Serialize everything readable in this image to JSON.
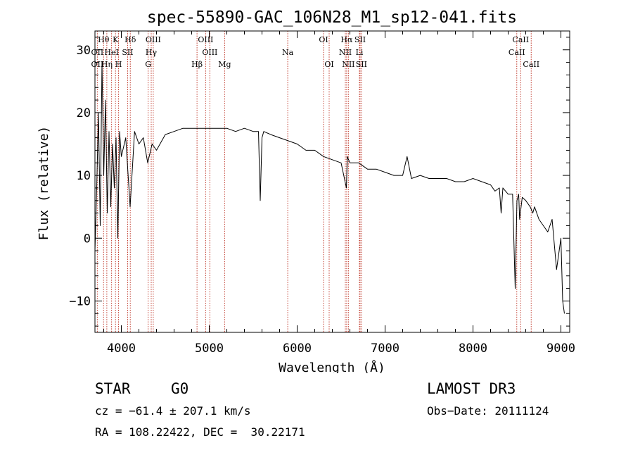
{
  "chart_data": {
    "type": "line",
    "title": "spec-55890-GAC_106N28_M1_sp12-041.fits",
    "xlabel": "Wavelength (Å)",
    "ylabel": "Flux (relative)",
    "xlim": [
      3700,
      9100
    ],
    "ylim": [
      -15,
      33
    ],
    "xticks": [
      4000,
      5000,
      6000,
      7000,
      8000,
      9000
    ],
    "yticks": [
      -10,
      0,
      10,
      20,
      30
    ],
    "series": [
      {
        "name": "flux",
        "x": [
          3700,
          3720,
          3740,
          3760,
          3780,
          3800,
          3820,
          3840,
          3860,
          3880,
          3900,
          3920,
          3940,
          3960,
          3980,
          4000,
          4050,
          4100,
          4150,
          4200,
          4250,
          4300,
          4350,
          4400,
          4500,
          4600,
          4700,
          4800,
          4900,
          5000,
          5100,
          5200,
          5300,
          5400,
          5500,
          5560,
          5580,
          5600,
          5620,
          5700,
          5800,
          5900,
          6000,
          6100,
          6200,
          6300,
          6400,
          6500,
          6560,
          6570,
          6600,
          6700,
          6800,
          6900,
          7000,
          7100,
          7200,
          7250,
          7300,
          7400,
          7500,
          7600,
          7700,
          7800,
          7900,
          8000,
          8100,
          8200,
          8250,
          8300,
          8320,
          8340,
          8400,
          8450,
          8480,
          8500,
          8520,
          8530,
          8560,
          8600,
          8650,
          8680,
          8700,
          8750,
          8800,
          8850,
          8900,
          8950,
          9000,
          9020,
          9040
        ],
        "y": [
          -2,
          8,
          20,
          2,
          28,
          10,
          22,
          4,
          17,
          5,
          15,
          8,
          16,
          0,
          17,
          13,
          16,
          5,
          17,
          15,
          16,
          12,
          15,
          14,
          16.5,
          17,
          17.5,
          17.5,
          17.5,
          17.5,
          17.5,
          17.5,
          17,
          17.5,
          17,
          17,
          6,
          16,
          17,
          16.5,
          16,
          15.5,
          15,
          14,
          14,
          13,
          12.5,
          12,
          8,
          13,
          12,
          12,
          11,
          11,
          10.5,
          10,
          10,
          13,
          9.5,
          10,
          9.5,
          9.5,
          9.5,
          9,
          9,
          9.5,
          9,
          8.5,
          7.5,
          8,
          4,
          8,
          7,
          7,
          -8,
          6,
          7,
          3,
          6.5,
          6,
          5,
          4,
          5,
          3,
          2,
          1,
          3,
          -5,
          0,
          -10,
          -12
        ]
      }
    ],
    "lines": [
      {
        "label": "Hθ",
        "wave": 3798,
        "row": 0
      },
      {
        "label": "K",
        "wave": 3934,
        "row": 0
      },
      {
        "label": "Hδ",
        "wave": 4102,
        "row": 0
      },
      {
        "label": "OIII",
        "wave": 4363,
        "row": 0
      },
      {
        "label": "OIII",
        "wave": 4959,
        "row": 0
      },
      {
        "label": "OI",
        "wave": 6300,
        "row": 0
      },
      {
        "label": "Hα",
        "wave": 6563,
        "row": 0
      },
      {
        "label": "SII",
        "wave": 6716,
        "row": 0
      },
      {
        "label": "CaII",
        "wave": 8542,
        "row": 0
      },
      {
        "label": "OII",
        "wave": 3727,
        "row": 1
      },
      {
        "label": "HeI",
        "wave": 3889,
        "row": 1
      },
      {
        "label": "SII",
        "wave": 4072,
        "row": 1
      },
      {
        "label": "Hγ",
        "wave": 4340,
        "row": 1
      },
      {
        "label": "OIII",
        "wave": 5007,
        "row": 1
      },
      {
        "label": "Na",
        "wave": 5893,
        "row": 1
      },
      {
        "label": "NII",
        "wave": 6548,
        "row": 1
      },
      {
        "label": "Li",
        "wave": 6708,
        "row": 1
      },
      {
        "label": "CaII",
        "wave": 8498,
        "row": 1
      },
      {
        "label": "OII",
        "wave": 3727,
        "row": 2
      },
      {
        "label": "Hη",
        "wave": 3835,
        "row": 2
      },
      {
        "label": "H",
        "wave": 3968,
        "row": 2
      },
      {
        "label": "G",
        "wave": 4305,
        "row": 2
      },
      {
        "label": "Hβ",
        "wave": 4861,
        "row": 2
      },
      {
        "label": "Mg",
        "wave": 5175,
        "row": 2
      },
      {
        "label": "OI",
        "wave": 6364,
        "row": 2
      },
      {
        "label": "NII",
        "wave": 6583,
        "row": 2
      },
      {
        "label": "SII",
        "wave": 6731,
        "row": 2
      },
      {
        "label": "CaII",
        "wave": 8662,
        "row": 2
      }
    ]
  },
  "info": {
    "object_class": "STAR",
    "subclass": "G0",
    "survey": "LAMOST DR3",
    "cz": "cz = −61.4 ± 207.1 km/s",
    "obs_date": "Obs−Date: 20111124",
    "coords": "RA = 108.22422, DEC =  30.22171"
  }
}
